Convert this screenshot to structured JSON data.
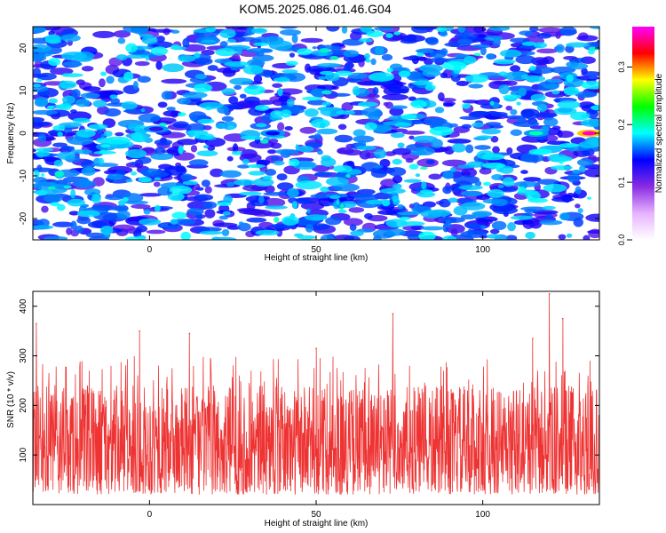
{
  "figure": {
    "title": "KOM5.2025.086.01.46.G04"
  },
  "chart_data": [
    {
      "type": "heatmap",
      "xlabel": "Height of straight line (km)",
      "ylabel": "Frequency (Hz)",
      "xlim": [
        -35,
        135
      ],
      "ylim": [
        -25,
        25
      ],
      "xticks": [
        0,
        50,
        100
      ],
      "yticks": [
        -20,
        -10,
        0,
        10,
        20
      ],
      "grid": false,
      "colorbar": {
        "label": "Normalized spectral amplitude",
        "range": [
          0.0,
          0.37
        ],
        "ticks": [
          "0.0",
          "0.1",
          "0.2",
          "0.3"
        ],
        "colormap": [
          "#ffffff",
          "#e6b3ff",
          "#8a2be2",
          "#0000ff",
          "#00ffff",
          "#00ff00",
          "#ffff00",
          "#ff0000",
          "#ff00ff"
        ]
      },
      "highlights": [
        {
          "x": 2,
          "y": 1,
          "value": 0.12
        },
        {
          "x": 37,
          "y": 0,
          "value": 0.14
        },
        {
          "x": 116,
          "y": 0,
          "value": 0.2
        },
        {
          "x": 132,
          "y": 0,
          "value": 0.36
        }
      ]
    },
    {
      "type": "line",
      "xlabel": "Height of straight line (km)",
      "ylabel": "SNR (10 * v/v)",
      "xlim": [
        -35,
        135
      ],
      "ylim": [
        0,
        430
      ],
      "xticks": [
        0,
        50,
        100
      ],
      "yticks": [
        100,
        200,
        300,
        400
      ],
      "grid": false,
      "series": [
        {
          "color": "#ee3333",
          "typical_range": [
            20,
            240
          ],
          "peaks": [
            {
              "x": -34,
              "y": 365
            },
            {
              "x": -3,
              "y": 350
            },
            {
              "x": 12,
              "y": 345
            },
            {
              "x": 50,
              "y": 315
            },
            {
              "x": 73,
              "y": 385
            },
            {
              "x": 115,
              "y": 335
            },
            {
              "x": 120,
              "y": 425
            },
            {
              "x": 124,
              "y": 375
            }
          ]
        }
      ]
    }
  ],
  "colors": {
    "axis": "#000000",
    "background": "#ffffff",
    "line": "#ee3333"
  }
}
